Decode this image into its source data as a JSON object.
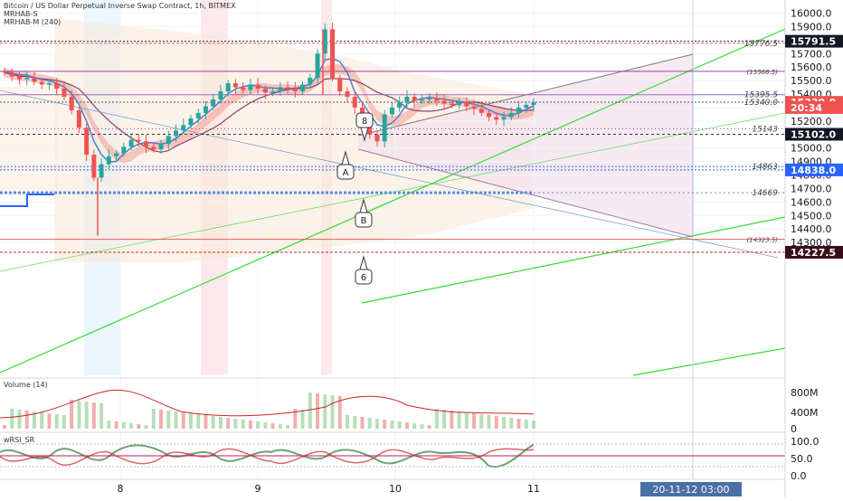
{
  "header": {
    "title": "Bitcoin / US Dollar Perpetual Inverse Swap Contract, 1h, BITMEX",
    "indicator_1": "MRHAB-S",
    "indicator_2": "MRHAB-M (240)"
  },
  "volume_pane": {
    "label": "Volume (14)",
    "axis_ticks": [
      "800M",
      "400M",
      "0"
    ]
  },
  "rsi_pane": {
    "label": "wRSI_SR",
    "axis_ticks": [
      "100.0",
      "50.0",
      "0.0"
    ]
  },
  "crosshair": {
    "date_label": "20-11-12  03:00"
  },
  "chart_data": {
    "type": "candlestick",
    "title": "Bitcoin / US Dollar Perpetual Inverse Swap Contract, 1h, BITMEX",
    "timeframe": "1h",
    "exchange": "BITMEX",
    "ylim": [
      14227,
      16100
    ],
    "y_ticks": [
      14300,
      14400,
      14500,
      14600,
      14700,
      14800,
      14900,
      15000,
      15100,
      15200,
      15300,
      15400,
      15500,
      15600,
      15700,
      15800,
      15900,
      16000
    ],
    "y_tick_labels": [
      "14300.0",
      "14400.0",
      "14500.0",
      "14600.0",
      "14700.0",
      "14800.0",
      "14900.0",
      "15000.0",
      "15100.0",
      "15200.0",
      "15300.0",
      "15400.0",
      "15500.0",
      "15600.0",
      "15700.0",
      "15800.0",
      "15900.0",
      "16000.0"
    ],
    "x_ticks": [
      "8",
      "9",
      "10",
      "11"
    ],
    "price_tags": [
      {
        "label": "15791.5",
        "value": 15791.5,
        "color": "#131722"
      },
      {
        "label": "15339.0",
        "value": 15339,
        "color": "#ef5350"
      },
      {
        "label": "20:34",
        "value": 15300,
        "color": "#ef5350"
      },
      {
        "label": "15102.0",
        "value": 15102,
        "color": "#131722"
      },
      {
        "label": "14838.0",
        "value": 14838,
        "color": "#2962ff"
      },
      {
        "label": "14227.5",
        "value": 14227.5,
        "color": "#3a0b18"
      }
    ],
    "level_labels": [
      {
        "label": "15776.5",
        "value": 15776.5
      },
      {
        "label": "(15568.5)",
        "value": 15568.5
      },
      {
        "label": "15395.5",
        "value": 15395.5
      },
      {
        "label": "15340.0",
        "value": 15340
      },
      {
        "label": "15143",
        "value": 15143
      },
      {
        "label": "14863",
        "value": 14863
      },
      {
        "label": "14669",
        "value": 14669
      },
      {
        "label": "(14323.5)",
        "value": 14323.5
      }
    ],
    "annotations": [
      {
        "label": "8",
        "value": 15440
      },
      {
        "label": "A",
        "value": 15220
      },
      {
        "label": "B",
        "value": 14990
      },
      {
        "label": "6",
        "value": 14665
      }
    ],
    "series": [
      {
        "name": "close",
        "values": [
          15560,
          15530,
          15510,
          15520,
          15490,
          15470,
          15480,
          15440,
          15380,
          15280,
          15150,
          14950,
          14780,
          14880,
          14940,
          14960,
          15010,
          15060,
          15050,
          15010,
          14990,
          15030,
          15090,
          15130,
          15170,
          15220,
          15260,
          15310,
          15360,
          15420,
          15480,
          15450,
          15430,
          15470,
          15440,
          15410,
          15420,
          15450,
          15440,
          15420,
          15470,
          15520,
          15700,
          15880,
          15520,
          15420,
          15380,
          15300,
          15200,
          15100,
          15050,
          15250,
          15300,
          15340,
          15380,
          15350,
          15360,
          15370,
          15350,
          15330,
          15320,
          15340,
          15310,
          15290,
          15260,
          15230,
          15210,
          15230,
          15260,
          15300,
          15320,
          15339
        ]
      }
    ]
  }
}
